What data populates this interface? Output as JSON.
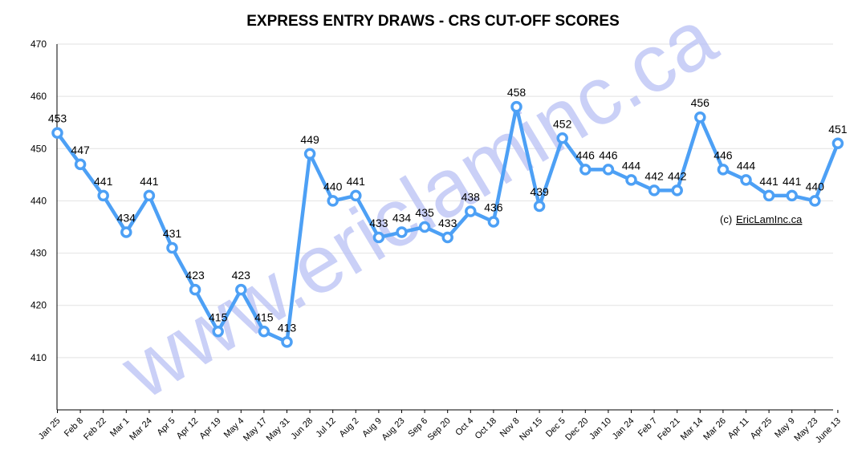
{
  "chart_data": {
    "type": "line",
    "title": "EXPRESS ENTRY DRAWS - CRS CUT-OFF SCORES",
    "xlabel": "",
    "ylabel": "",
    "ylim": [
      400,
      470
    ],
    "yticks": [
      410,
      420,
      430,
      440,
      450,
      460,
      470
    ],
    "grid": true,
    "categories": [
      "Jan 25",
      "Feb 8",
      "Feb 22",
      "Mar 1",
      "Mar 24",
      "Apr 5",
      "Apr 12",
      "Apr 19",
      "May 4",
      "May 17",
      "May 31",
      "Jun 28",
      "Jul 12",
      "Aug 2",
      "Aug 9",
      "Aug 23",
      "Sep 6",
      "Sep 20",
      "Oct 4",
      "Oct 18",
      "Nov 8",
      "Nov 15",
      "Dec 5",
      "Dec 20",
      "Jan 10",
      "Jan 24",
      "Feb 7",
      "Feb 21",
      "Mar 14",
      "Mar 26",
      "Apr 11",
      "Apr 25",
      "May 9",
      "May 23",
      "June 13"
    ],
    "series": [
      {
        "values": [
          453,
          447,
          441,
          434,
          441,
          431,
          423,
          415,
          423,
          415,
          413,
          449,
          440,
          441,
          433,
          434,
          435,
          433,
          438,
          436,
          458,
          439,
          452,
          446,
          446,
          444,
          442,
          442,
          456,
          446,
          444,
          441,
          441,
          440,
          451
        ]
      }
    ],
    "line_color": "#4da0f5",
    "annotation": "(c)",
    "annotation_link": "EricLamInc.ca",
    "watermark": "www.ericlaminc.ca"
  }
}
